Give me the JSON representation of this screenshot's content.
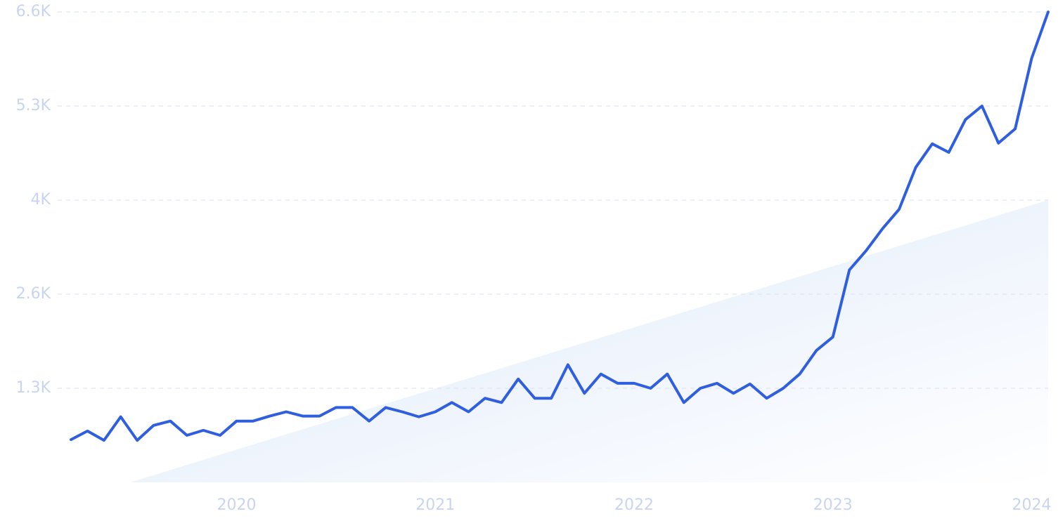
{
  "chart_data": {
    "type": "line",
    "x": [
      2019.167,
      2019.25,
      2019.333,
      2019.417,
      2019.5,
      2019.583,
      2019.667,
      2019.75,
      2019.833,
      2019.917,
      2020,
      2020.083,
      2020.167,
      2020.25,
      2020.333,
      2020.417,
      2020.5,
      2020.583,
      2020.667,
      2020.75,
      2020.833,
      2020.917,
      2021,
      2021.083,
      2021.167,
      2021.25,
      2021.333,
      2021.417,
      2021.5,
      2021.583,
      2021.667,
      2021.75,
      2021.833,
      2021.917,
      2022,
      2022.083,
      2022.167,
      2022.25,
      2022.333,
      2022.417,
      2022.5,
      2022.583,
      2022.667,
      2022.75,
      2022.833,
      2022.917,
      2023,
      2023.083,
      2023.167,
      2023.25,
      2023.333,
      2023.417,
      2023.5,
      2023.583,
      2023.667,
      2023.75,
      2023.833,
      2023.917,
      2024,
      2024.083
    ],
    "series": [
      {
        "color": "#2f5fe0",
        "values": [
          600,
          720,
          590,
          920,
          590,
          800,
          860,
          660,
          730,
          660,
          860,
          860,
          930,
          990,
          930,
          930,
          1050,
          1050,
          860,
          1050,
          990,
          920,
          990,
          1120,
          990,
          1180,
          1120,
          1450,
          1180,
          1180,
          1650,
          1250,
          1520,
          1390,
          1390,
          1320,
          1520,
          1120,
          1320,
          1390,
          1250,
          1380,
          1180,
          1320,
          1520,
          1850,
          2040,
          2980,
          3250,
          3560,
          3830,
          4420,
          4750,
          4630,
          5090,
          5280,
          4760,
          4960,
          5950,
          6600
        ]
      }
    ],
    "xlim": [
      2019.167,
      2024.083
    ],
    "xticks": [
      2020,
      2021,
      2022,
      2023,
      2024
    ],
    "ylim": [
      0,
      6600
    ],
    "yticks": [
      {
        "value": 1320,
        "label": "1.3K"
      },
      {
        "value": 2640,
        "label": "2.6K"
      },
      {
        "value": 3960,
        "label": "4K"
      },
      {
        "value": 5280,
        "label": "5.3K"
      },
      {
        "value": 6600,
        "label": "6.6K"
      }
    ],
    "grid": true
  }
}
